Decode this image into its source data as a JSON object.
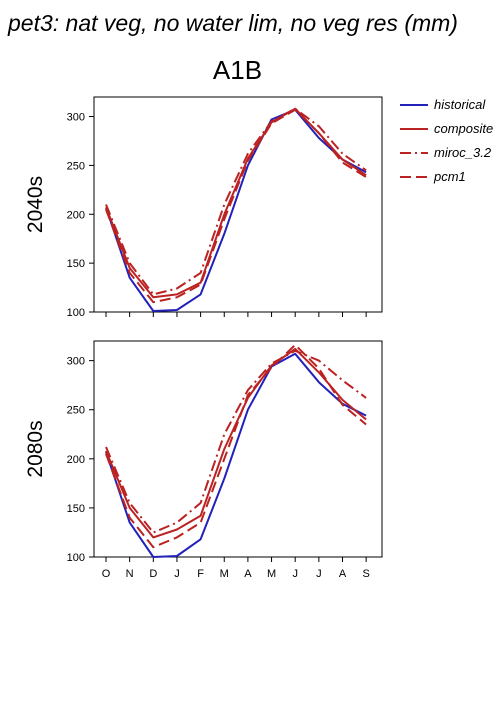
{
  "title": "pet3: nat veg, no water lim, no veg res (mm)",
  "scenario": "A1B",
  "chart_data": [
    {
      "type": "line",
      "panel_label": "2040s",
      "categories": [
        "O",
        "N",
        "D",
        "J",
        "F",
        "M",
        "A",
        "M",
        "J",
        "J",
        "A",
        "S"
      ],
      "ylim": [
        100,
        320
      ],
      "yticks": [
        100,
        150,
        200,
        250,
        300
      ],
      "grid": false,
      "legend_position": "right",
      "series": [
        {
          "name": "historical",
          "color": "#2222bb",
          "dash": "solid",
          "values": [
            207,
            135,
            101,
            102,
            118,
            180,
            250,
            297,
            307,
            278,
            256,
            243
          ]
        },
        {
          "name": "composite",
          "color": "#bb2222",
          "dash": "solid",
          "values": [
            207,
            145,
            115,
            118,
            130,
            200,
            257,
            294,
            308,
            283,
            256,
            240
          ]
        },
        {
          "name": "miroc_3.2",
          "color": "#bb2222",
          "dash": "dashdot",
          "values": [
            210,
            150,
            118,
            124,
            140,
            210,
            262,
            295,
            308,
            290,
            262,
            245
          ]
        },
        {
          "name": "pcm1",
          "color": "#bb2222",
          "dash": "dash",
          "values": [
            205,
            140,
            110,
            115,
            128,
            195,
            255,
            293,
            307,
            283,
            253,
            238
          ]
        }
      ]
    },
    {
      "type": "line",
      "panel_label": "2080s",
      "categories": [
        "O",
        "N",
        "D",
        "J",
        "F",
        "M",
        "A",
        "M",
        "J",
        "J",
        "A",
        "S"
      ],
      "ylim": [
        100,
        320
      ],
      "yticks": [
        100,
        150,
        200,
        250,
        300
      ],
      "grid": false,
      "series": [
        {
          "name": "historical",
          "color": "#2222bb",
          "dash": "solid",
          "values": [
            207,
            135,
            100,
            101,
            118,
            180,
            250,
            294,
            307,
            278,
            256,
            244
          ]
        },
        {
          "name": "composite",
          "color": "#bb2222",
          "dash": "solid",
          "values": [
            208,
            150,
            120,
            128,
            142,
            210,
            262,
            295,
            312,
            288,
            260,
            240
          ]
        },
        {
          "name": "miroc_3.2",
          "color": "#bb2222",
          "dash": "dashdot",
          "values": [
            212,
            155,
            125,
            135,
            155,
            225,
            270,
            297,
            310,
            300,
            280,
            262
          ]
        },
        {
          "name": "pcm1",
          "color": "#bb2222",
          "dash": "dash",
          "values": [
            205,
            140,
            110,
            120,
            135,
            200,
            265,
            293,
            316,
            292,
            255,
            235
          ]
        }
      ]
    }
  ]
}
